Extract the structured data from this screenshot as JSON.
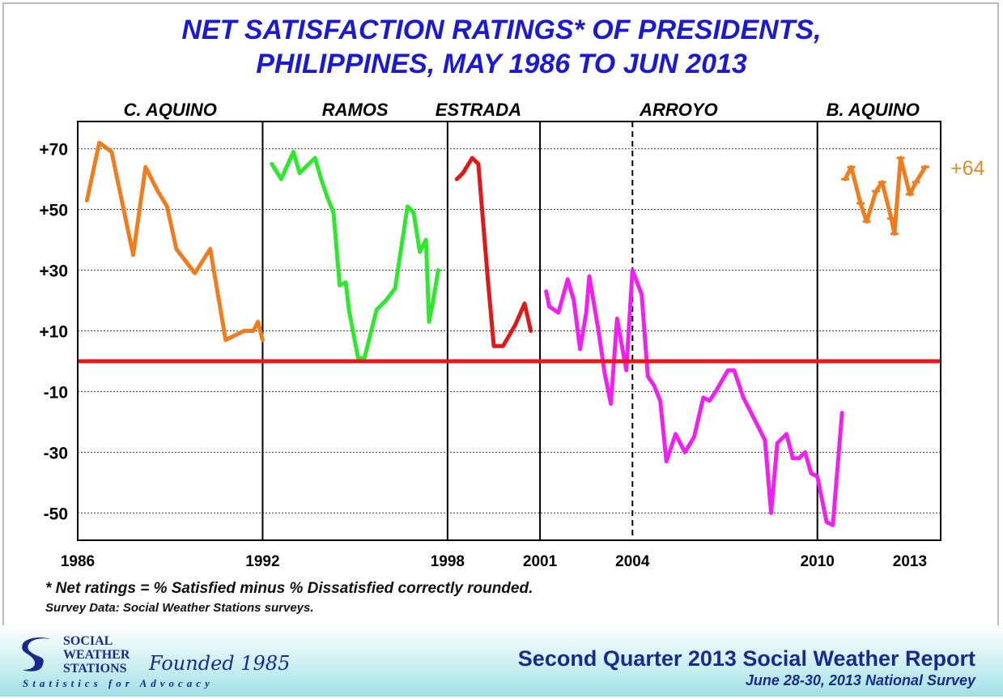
{
  "title_line1": "NET SATISFACTION RATINGS* OF PRESIDENTS,",
  "title_line2": "PHILIPPINES, MAY 1986 TO JUN 2013",
  "footnote1": "* Net ratings = % Satisfied minus % Dissatisfied correctly rounded.",
  "footnote2": "Survey Data: Social Weather Stations surveys.",
  "logo": {
    "line1": "SOCIAL",
    "line2": "WEATHER",
    "line3": "STATIONS",
    "founded": "Founded 1985",
    "tagline": "Statistics for Advocacy"
  },
  "report_title": "Second Quarter 2013 Social Weather Report",
  "survey_date": "June 28-30, 2013 National Survey",
  "colors": {
    "aquino_c": "#f07c1e",
    "ramos": "#2ee82e",
    "estrada": "#e01818",
    "arroyo": "#f020f0",
    "aquino_b": "#f07c1e",
    "zero_line": "#e81818",
    "text_blue": "#1a1ad0",
    "last_label": "#e08a2a"
  },
  "chart_data": {
    "type": "line",
    "title": "NET SATISFACTION RATINGS* OF PRESIDENTS, PHILIPPINES, MAY 1986 TO JUN 2013",
    "xlabel": "",
    "ylabel": "",
    "xlim": [
      1986,
      2014
    ],
    "ylim": [
      -59,
      79
    ],
    "y_ticks": [
      "+70",
      "+50",
      "+30",
      "+10",
      "-10",
      "-30",
      "-50"
    ],
    "y_tick_values": [
      70,
      50,
      30,
      10,
      -10,
      -30,
      -50
    ],
    "x_ticks": [
      "1986",
      "1992",
      "1998",
      "2001",
      "2004",
      "2010",
      "2013"
    ],
    "x_tick_values": [
      1986,
      1992,
      1998,
      2001,
      2004,
      2010,
      2013
    ],
    "grid": true,
    "zero_line": 0,
    "term_boundaries": [
      1992,
      1998,
      2001,
      2010
    ],
    "dashed_boundary": 2004,
    "presidents": [
      {
        "name": "C. AQUINO",
        "label_x": 1989.0
      },
      {
        "name": "RAMOS",
        "label_x": 1995.0
      },
      {
        "name": "ESTRADA",
        "label_x": 1999.0
      },
      {
        "name": "ARROYO",
        "label_x": 2005.5
      },
      {
        "name": "B. AQUINO",
        "label_x": 2011.8
      }
    ],
    "last_value_label": "+64",
    "series": [
      {
        "color_key": "aquino_c",
        "markers": false,
        "points": [
          [
            1986.3,
            53
          ],
          [
            1986.7,
            72
          ],
          [
            1987.1,
            69
          ],
          [
            1987.8,
            35
          ],
          [
            1988.2,
            64
          ],
          [
            1988.6,
            56
          ],
          [
            1988.9,
            51
          ],
          [
            1989.2,
            37
          ],
          [
            1989.8,
            29
          ],
          [
            1990.3,
            37
          ],
          [
            1990.8,
            7
          ],
          [
            1991.4,
            10
          ],
          [
            1991.7,
            10
          ],
          [
            1991.85,
            13
          ],
          [
            1992.0,
            7
          ]
        ]
      },
      {
        "color_key": "ramos",
        "markers": false,
        "points": [
          [
            1992.3,
            65
          ],
          [
            1992.6,
            60
          ],
          [
            1993.0,
            69
          ],
          [
            1993.2,
            62
          ],
          [
            1993.7,
            67
          ],
          [
            1993.9,
            60
          ],
          [
            1994.1,
            54
          ],
          [
            1994.3,
            49
          ],
          [
            1994.5,
            25
          ],
          [
            1994.7,
            26
          ],
          [
            1994.8,
            17
          ],
          [
            1995.1,
            1
          ],
          [
            1995.3,
            1
          ],
          [
            1995.7,
            17
          ],
          [
            1996.0,
            20
          ],
          [
            1996.3,
            24
          ],
          [
            1996.7,
            51
          ],
          [
            1996.9,
            49
          ],
          [
            1997.1,
            36
          ],
          [
            1997.3,
            40
          ],
          [
            1997.4,
            13
          ],
          [
            1997.5,
            18
          ],
          [
            1997.7,
            30
          ]
        ]
      },
      {
        "color_key": "estrada",
        "markers": false,
        "points": [
          [
            1998.3,
            60
          ],
          [
            1998.5,
            62
          ],
          [
            1998.8,
            67
          ],
          [
            1999.0,
            65
          ],
          [
            1999.3,
            28
          ],
          [
            1999.5,
            5
          ],
          [
            1999.8,
            5
          ],
          [
            2000.2,
            12
          ],
          [
            2000.5,
            19
          ],
          [
            2000.7,
            10
          ]
        ]
      },
      {
        "color_key": "arroyo",
        "markers": false,
        "points": [
          [
            2001.2,
            23
          ],
          [
            2001.3,
            18
          ],
          [
            2001.6,
            16
          ],
          [
            2001.9,
            27
          ],
          [
            2002.1,
            20
          ],
          [
            2002.3,
            4
          ],
          [
            2002.5,
            16
          ],
          [
            2002.6,
            28
          ],
          [
            2002.9,
            10
          ],
          [
            2003.1,
            -4
          ],
          [
            2003.3,
            -14
          ],
          [
            2003.5,
            14
          ],
          [
            2003.8,
            -3
          ],
          [
            2004.0,
            30
          ],
          [
            2004.3,
            22
          ],
          [
            2004.5,
            -5
          ],
          [
            2004.7,
            -8
          ],
          [
            2004.9,
            -13
          ],
          [
            2005.1,
            -33
          ],
          [
            2005.4,
            -24
          ],
          [
            2005.7,
            -30
          ],
          [
            2006.0,
            -25
          ],
          [
            2006.3,
            -12
          ],
          [
            2006.5,
            -13
          ],
          [
            2006.7,
            -10
          ],
          [
            2007.1,
            -3
          ],
          [
            2007.3,
            -3
          ],
          [
            2007.6,
            -12
          ],
          [
            2008.0,
            -20
          ],
          [
            2008.3,
            -26
          ],
          [
            2008.5,
            -50
          ],
          [
            2008.7,
            -27
          ],
          [
            2009.0,
            -24
          ],
          [
            2009.2,
            -32
          ],
          [
            2009.4,
            -32
          ],
          [
            2009.6,
            -30
          ],
          [
            2009.8,
            -37
          ],
          [
            2010.0,
            -38
          ],
          [
            2010.3,
            -53
          ],
          [
            2010.5,
            -54
          ],
          [
            2010.8,
            -17
          ]
        ]
      },
      {
        "color_key": "aquino_b",
        "markers": true,
        "points": [
          [
            2010.9,
            60
          ],
          [
            2011.1,
            64
          ],
          [
            2011.4,
            52
          ],
          [
            2011.6,
            46
          ],
          [
            2011.9,
            56
          ],
          [
            2012.1,
            59
          ],
          [
            2012.4,
            47
          ],
          [
            2012.5,
            42
          ],
          [
            2012.7,
            67
          ],
          [
            2013.0,
            55
          ],
          [
            2013.2,
            59
          ],
          [
            2013.5,
            64
          ]
        ]
      }
    ]
  }
}
